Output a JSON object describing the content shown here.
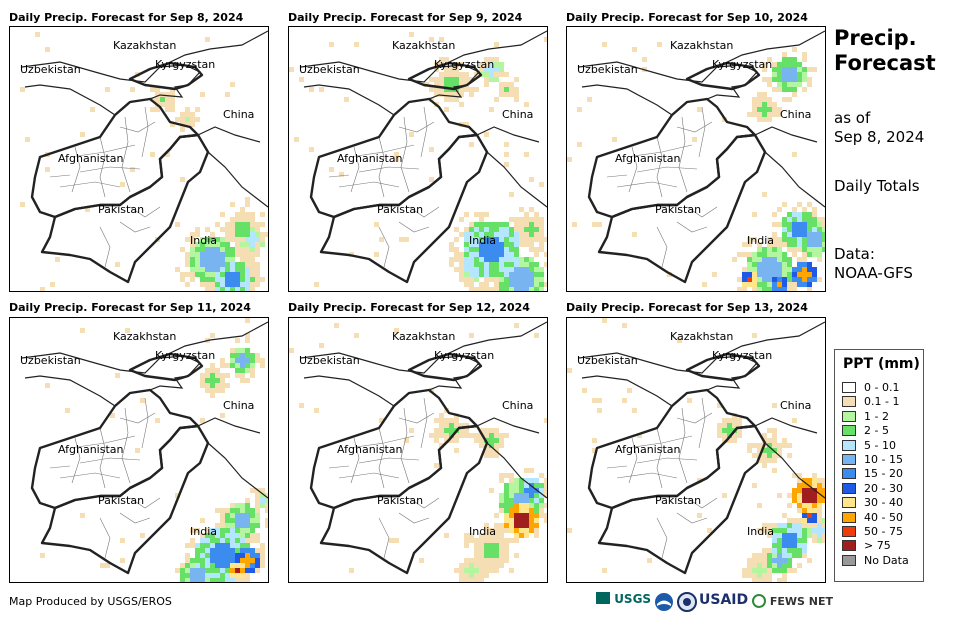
{
  "panels": [
    {
      "title": "Daily Precip. Forecast for Sep 8, 2024",
      "day": 8
    },
    {
      "title": "Daily Precip. Forecast for Sep 9, 2024",
      "day": 9
    },
    {
      "title": "Daily Precip. Forecast for Sep 10, 2024",
      "day": 10
    },
    {
      "title": "Daily Precip. Forecast for Sep 11, 2024",
      "day": 11
    },
    {
      "title": "Daily Precip. Forecast for Sep 12, 2024",
      "day": 12
    },
    {
      "title": "Daily Precip. Forecast for Sep 13, 2024",
      "day": 13
    }
  ],
  "map_labels": {
    "kazakhstan": "Kazakhstan",
    "uzbekistan": "Uzbekistan",
    "kyrgyzstan": "Kyrgyzstan",
    "china": "China",
    "afghanistan": "Afghanistan",
    "pakistan": "Pakistan",
    "india": "India"
  },
  "side": {
    "title_line1": "Precip.",
    "title_line2": "Forecast",
    "asof_line1": "as of",
    "asof_line2": "Sep 8, 2024",
    "totals": "Daily Totals",
    "data_line1": "Data:",
    "data_line2": "NOAA-GFS"
  },
  "legend": {
    "title": "PPT (mm)",
    "items": [
      {
        "label": "0 - 0.1",
        "color": "#ffffff"
      },
      {
        "label": "0.1 - 1",
        "color": "#f5deb3"
      },
      {
        "label": "1 - 2",
        "color": "#b4f5a0"
      },
      {
        "label": "2 - 5",
        "color": "#66e066"
      },
      {
        "label": "5 - 10",
        "color": "#b4e6ff"
      },
      {
        "label": "10 - 15",
        "color": "#78b4f0"
      },
      {
        "label": "15 - 20",
        "color": "#3c8cf0"
      },
      {
        "label": "20 - 30",
        "color": "#1e5ae6"
      },
      {
        "label": "30 - 40",
        "color": "#ffe68c"
      },
      {
        "label": "40 - 50",
        "color": "#ffa500"
      },
      {
        "label": "50 - 75",
        "color": "#f03c0a"
      },
      {
        "label": "> 75",
        "color": "#a01e1e"
      },
      {
        "label": "No Data",
        "color": "#999999"
      }
    ]
  },
  "footer": "Map Produced by USGS/EROS",
  "logos": {
    "usgs": "USGS",
    "usaid": "USAID",
    "fewsnet": "FEWS NET"
  }
}
